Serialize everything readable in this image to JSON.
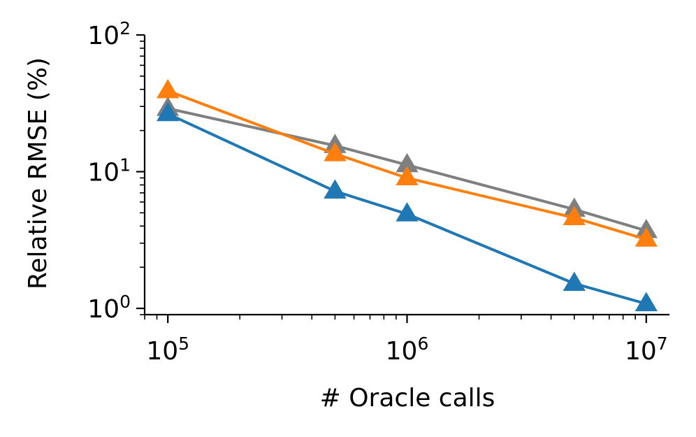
{
  "chart_data": {
    "type": "line",
    "xlabel": "# Oracle calls",
    "ylabel": "Relative RMSE (%)",
    "xscale": "log",
    "yscale": "log",
    "xlim": [
      80000,
      12500000
    ],
    "ylim": [
      0.9,
      100
    ],
    "xticks": [
      {
        "value": 100000,
        "base": "10",
        "exp": "5"
      },
      {
        "value": 1000000,
        "base": "10",
        "exp": "6"
      },
      {
        "value": 10000000,
        "base": "10",
        "exp": "7"
      }
    ],
    "yticks": [
      {
        "value": 1,
        "base": "10",
        "exp": "0"
      },
      {
        "value": 10,
        "base": "10",
        "exp": "1"
      },
      {
        "value": 100,
        "base": "10",
        "exp": "2"
      }
    ],
    "grid": false,
    "legend": "none",
    "marker": "triangle",
    "series": [
      {
        "color": "#7f7f7f",
        "x": [
          100000,
          500000,
          1000000,
          5000000,
          10000000
        ],
        "y": [
          29,
          15.5,
          11.2,
          5.3,
          3.7
        ]
      },
      {
        "color": "#ff7f0e",
        "x": [
          100000,
          500000,
          1000000,
          5000000,
          10000000
        ],
        "y": [
          39,
          13.5,
          9.0,
          4.6,
          3.2
        ]
      },
      {
        "color": "#1f77b4",
        "x": [
          100000,
          500000,
          1000000,
          5000000,
          10000000
        ],
        "y": [
          26.5,
          7.2,
          4.9,
          1.52,
          1.08
        ]
      }
    ]
  }
}
